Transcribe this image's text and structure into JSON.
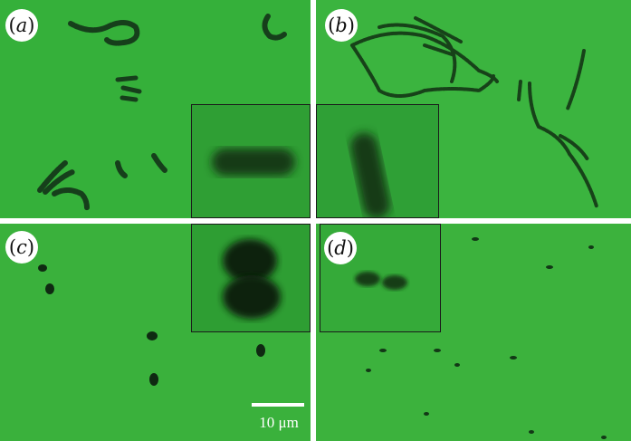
{
  "panels": {
    "a": {
      "label_letter": "a"
    },
    "b": {
      "label_letter": "b"
    },
    "c": {
      "label_letter": "c"
    },
    "d": {
      "label_letter": "d"
    }
  },
  "label_parens": {
    "open": "(",
    "close": ")"
  },
  "scale_bar": {
    "text": "10 μm"
  },
  "colors": {
    "background_green": "#38b13c",
    "cell_dark": "#123d18",
    "inset_border": "#1a1a1a",
    "divider": "#ffffff"
  }
}
